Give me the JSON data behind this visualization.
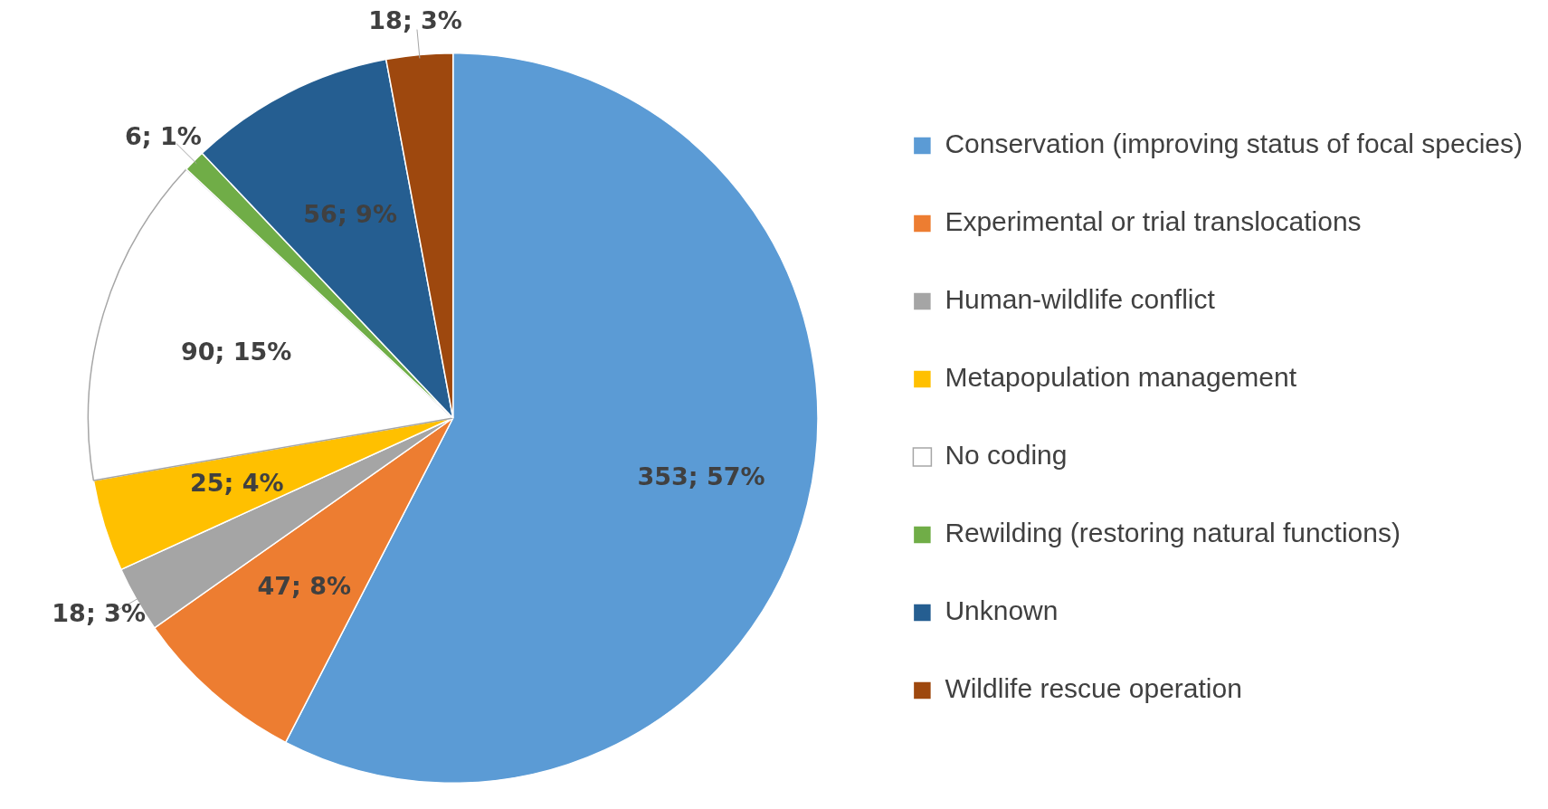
{
  "chart_data": {
    "type": "pie",
    "categories": [
      "Conservation (improving status of focal species)",
      "Experimental or trial translocations",
      "Human-wildlife conflict",
      "Metapopulation management",
      "No coding",
      "Rewilding (restoring natural functions)",
      "Unknown",
      "Wildlife rescue operation"
    ],
    "values": [
      353,
      47,
      18,
      25,
      90,
      6,
      56,
      18
    ],
    "value_labels": [
      "353; 57%",
      "47; 8%",
      "18; 3%",
      "25; 4%",
      "90; 15%",
      "6; 1%",
      "56; 9%",
      "18; 3%"
    ],
    "colors": [
      "#5b9bd5",
      "#ed7d31",
      "#a5a5a5",
      "#ffc000",
      "#ffffff",
      "#70ad47",
      "#255e91",
      "#9e480e"
    ],
    "legend": "right"
  }
}
